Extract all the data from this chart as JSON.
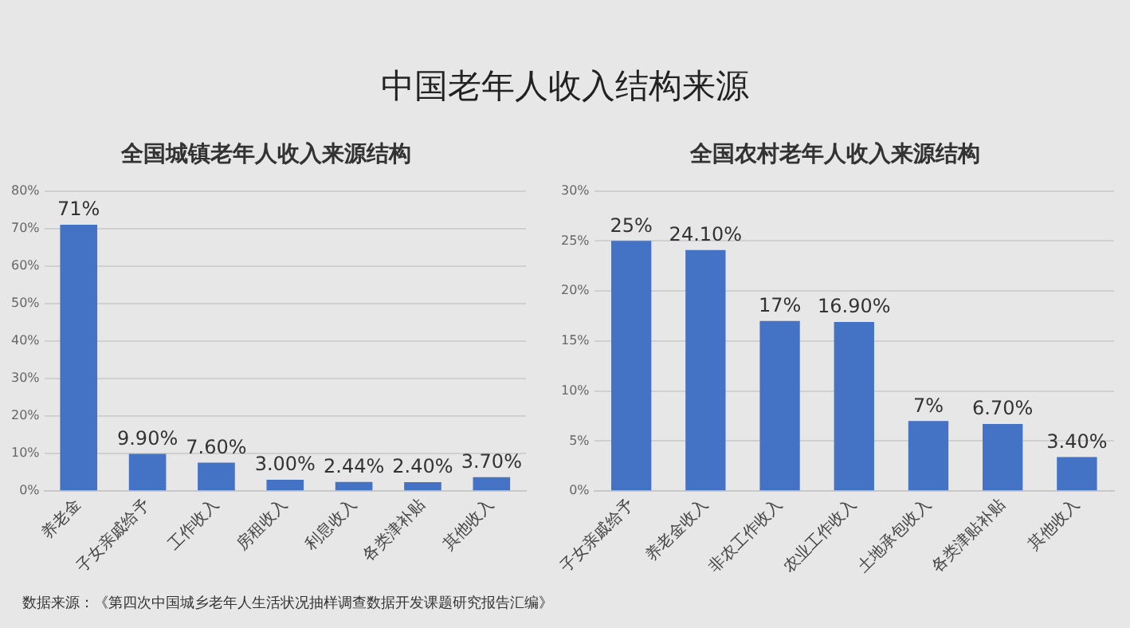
{
  "chart_data": [
    {
      "type": "bar",
      "title": "全国城镇老年人收入来源结构",
      "annotations": [
        "中国老年人收入结构来源",
        "数据来源：《第四次中国城乡老年人生活状况抽样调查数据开发课题研究报告汇编》"
      ],
      "categories": [
        "养老金",
        "子女亲戚给予",
        "工作收入",
        "房租收入",
        "利息收入",
        "各类津补贴",
        "其他收入"
      ],
      "values": [
        71,
        9.9,
        7.6,
        3.0,
        2.44,
        2.4,
        3.7
      ],
      "value_labels": [
        "71%",
        "9.90%",
        "7.60%",
        "3.00%",
        "2.44%",
        "2.40%",
        "3.70%"
      ],
      "color": "#4472c4",
      "ylim": [
        0,
        80
      ],
      "yticks": [
        {
          "value": 0,
          "label": "0%"
        },
        {
          "value": 10,
          "label": "10%"
        },
        {
          "value": 20,
          "label": "20%"
        },
        {
          "value": 30,
          "label": "30%"
        },
        {
          "value": 40,
          "label": "40%"
        },
        {
          "value": 50,
          "label": "50%"
        },
        {
          "value": 60,
          "label": "60%"
        },
        {
          "value": 70,
          "label": "70%"
        },
        {
          "value": 80,
          "label": "80%"
        }
      ],
      "grid": "y",
      "legend": false
    },
    {
      "type": "bar",
      "title": "全国农村老年人收入来源结构",
      "categories": [
        "子女亲戚给予",
        "养老金收入",
        "非农工作收入",
        "农业工作收入",
        "土地承包收入",
        "各类津贴补贴",
        "其他收入"
      ],
      "values": [
        25,
        24.1,
        17,
        16.9,
        7,
        6.7,
        3.4
      ],
      "value_labels": [
        "25%",
        "24.10%",
        "17%",
        "16.90%",
        "7%",
        "6.70%",
        "3.40%"
      ],
      "color": "#4472c4",
      "ylim": [
        0,
        30
      ],
      "yticks": [
        {
          "value": 0,
          "label": "0%"
        },
        {
          "value": 5,
          "label": "5%"
        },
        {
          "value": 10,
          "label": "10%"
        },
        {
          "value": 15,
          "label": "15%"
        },
        {
          "value": 20,
          "label": "20%"
        },
        {
          "value": 25,
          "label": "25%"
        },
        {
          "value": 30,
          "label": "30%"
        }
      ],
      "grid": "y",
      "legend": false
    }
  ]
}
